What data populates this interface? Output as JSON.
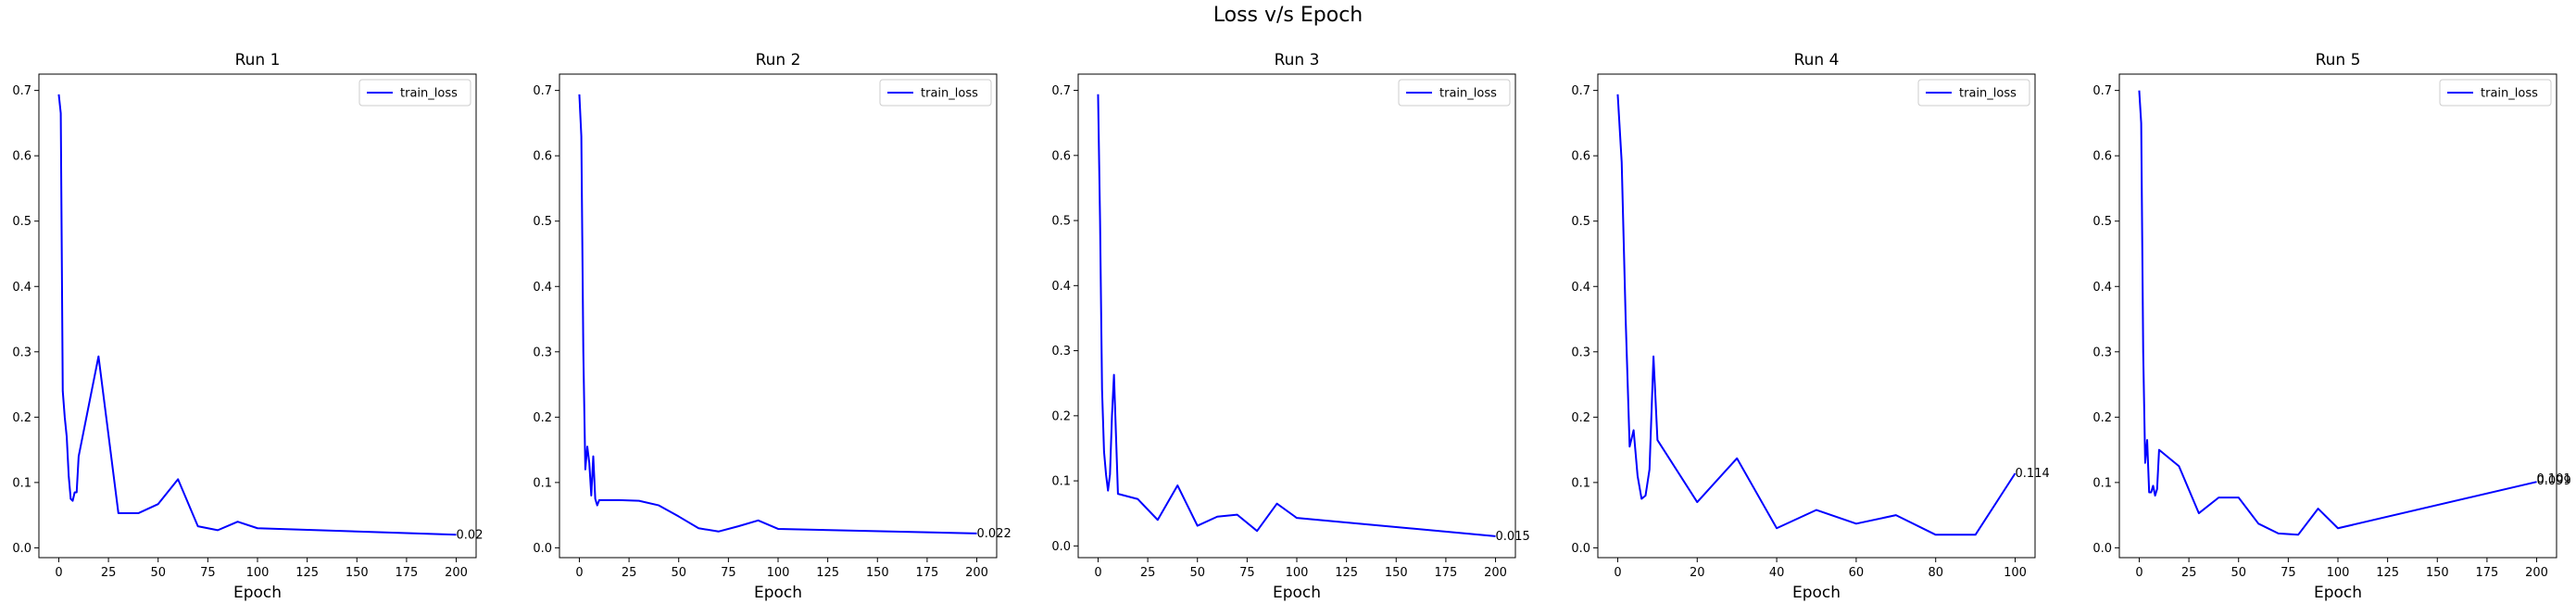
{
  "figure": {
    "title": "Loss v/s Epoch"
  },
  "chart_data": [
    {
      "type": "line",
      "title": "Run 1",
      "xlabel": "Epoch",
      "ylabel": "",
      "xlim": [
        -10,
        210
      ],
      "ylim": [
        -0.015,
        0.725
      ],
      "xticks": [
        0,
        25,
        50,
        75,
        100,
        125,
        150,
        175,
        200
      ],
      "yticks": [
        0.0,
        0.1,
        0.2,
        0.3,
        0.4,
        0.5,
        0.6,
        0.7
      ],
      "legend": "top-right",
      "series": [
        {
          "name": "train_loss",
          "color": "#0000ff",
          "x": [
            0,
            1,
            2,
            3,
            4,
            5,
            6,
            7,
            8,
            9,
            10,
            20,
            30,
            40,
            50,
            60,
            70,
            80,
            90,
            100,
            200
          ],
          "y": [
            0.694,
            0.665,
            0.24,
            0.2,
            0.17,
            0.11,
            0.075,
            0.072,
            0.085,
            0.085,
            0.14,
            0.293,
            0.053,
            0.053,
            0.067,
            0.105,
            0.033,
            0.027,
            0.04,
            0.03,
            0.02
          ]
        }
      ],
      "annotation": "0.02"
    },
    {
      "type": "line",
      "title": "Run 2",
      "xlabel": "Epoch",
      "ylabel": "",
      "xlim": [
        -10,
        210
      ],
      "ylim": [
        -0.015,
        0.725
      ],
      "xticks": [
        0,
        25,
        50,
        75,
        100,
        125,
        150,
        175,
        200
      ],
      "yticks": [
        0.0,
        0.1,
        0.2,
        0.3,
        0.4,
        0.5,
        0.6,
        0.7
      ],
      "legend": "top-right",
      "series": [
        {
          "name": "train_loss",
          "color": "#0000ff",
          "x": [
            0,
            1,
            2,
            3,
            4,
            5,
            6,
            7,
            8,
            9,
            10,
            20,
            30,
            40,
            50,
            60,
            70,
            80,
            90,
            100,
            200
          ],
          "y": [
            0.694,
            0.63,
            0.3,
            0.12,
            0.155,
            0.13,
            0.08,
            0.14,
            0.075,
            0.065,
            0.073,
            0.073,
            0.072,
            0.065,
            0.048,
            0.03,
            0.025,
            0.033,
            0.042,
            0.029,
            0.022
          ]
        }
      ],
      "annotation": "0.022"
    },
    {
      "type": "line",
      "title": "Run 3",
      "xlabel": "Epoch",
      "ylabel": "",
      "xlim": [
        -10,
        210
      ],
      "ylim": [
        -0.018,
        0.725
      ],
      "xticks": [
        0,
        25,
        50,
        75,
        100,
        125,
        150,
        175,
        200
      ],
      "yticks": [
        0.0,
        0.1,
        0.2,
        0.3,
        0.4,
        0.5,
        0.6,
        0.7
      ],
      "legend": "top-right",
      "series": [
        {
          "name": "train_loss",
          "color": "#0000ff",
          "x": [
            0,
            1,
            2,
            3,
            4,
            5,
            6,
            7,
            8,
            10,
            20,
            30,
            40,
            50,
            60,
            70,
            80,
            90,
            100,
            200
          ],
          "y": [
            0.694,
            0.5,
            0.24,
            0.145,
            0.11,
            0.085,
            0.11,
            0.2,
            0.263,
            0.08,
            0.072,
            0.04,
            0.093,
            0.031,
            0.045,
            0.048,
            0.023,
            0.065,
            0.043,
            0.015
          ]
        }
      ],
      "annotation": "0.015"
    },
    {
      "type": "line",
      "title": "Run 4",
      "xlabel": "Epoch",
      "ylabel": "",
      "xlim": [
        -5,
        105
      ],
      "ylim": [
        -0.015,
        0.725
      ],
      "xticks": [
        0,
        20,
        40,
        60,
        80,
        100
      ],
      "yticks": [
        0.0,
        0.1,
        0.2,
        0.3,
        0.4,
        0.5,
        0.6,
        0.7
      ],
      "legend": "top-right",
      "series": [
        {
          "name": "train_loss",
          "color": "#0000ff",
          "x": [
            0,
            1,
            2,
            3,
            4,
            5,
            6,
            7,
            8,
            9,
            10,
            20,
            30,
            40,
            50,
            60,
            70,
            80,
            90,
            100
          ],
          "y": [
            0.694,
            0.59,
            0.35,
            0.155,
            0.18,
            0.11,
            0.075,
            0.08,
            0.12,
            0.293,
            0.165,
            0.07,
            0.137,
            0.03,
            0.058,
            0.037,
            0.05,
            0.02,
            0.02,
            0.114
          ]
        }
      ],
      "annotation": "0.114"
    },
    {
      "type": "line",
      "title": "Run 5",
      "xlabel": "Epoch",
      "ylabel": "",
      "xlim": [
        -10,
        210
      ],
      "ylim": [
        -0.015,
        0.725
      ],
      "xticks": [
        0,
        25,
        50,
        75,
        100,
        125,
        150,
        175,
        200
      ],
      "yticks": [
        0.0,
        0.1,
        0.2,
        0.3,
        0.4,
        0.5,
        0.6,
        0.7
      ],
      "legend": "top-right",
      "series": [
        {
          "name": "train_loss",
          "color": "#0000ff",
          "x": [
            0,
            1,
            2,
            3,
            4,
            5,
            6,
            7,
            8,
            9,
            10,
            20,
            30,
            40,
            50,
            60,
            70,
            80,
            90,
            100,
            200
          ],
          "y": [
            0.7,
            0.65,
            0.3,
            0.13,
            0.165,
            0.085,
            0.085,
            0.095,
            0.08,
            0.09,
            0.15,
            0.125,
            0.053,
            0.077,
            0.077,
            0.037,
            0.022,
            0.02,
            0.06,
            0.03,
            0.101
          ]
        }
      ],
      "annotation": "0.101",
      "annotation_overlap": "0.099"
    }
  ]
}
